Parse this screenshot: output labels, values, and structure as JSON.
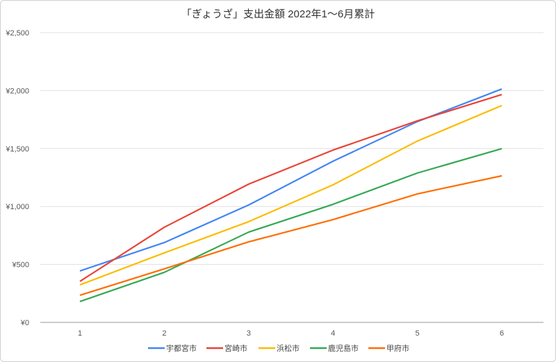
{
  "chart_data": {
    "type": "line",
    "title": "「ぎょうざ」支出金額 2022年1〜6月累計",
    "xlabel": "",
    "ylabel": "",
    "x": [
      "1",
      "2",
      "3",
      "4",
      "5",
      "6"
    ],
    "ylim": [
      0,
      2500
    ],
    "yticks": [
      0,
      500,
      1000,
      1500,
      2000,
      2500
    ],
    "ytick_labels": [
      "¥0",
      "¥500",
      "¥1,000",
      "¥1,500",
      "¥2,000",
      "¥2,500"
    ],
    "grid": true,
    "legend_position": "bottom",
    "series": [
      {
        "name": "宇都宮市",
        "color": "#4285f4",
        "values": [
          444,
          689,
          1013,
          1391,
          1733,
          2014
        ]
      },
      {
        "name": "宮崎市",
        "color": "#ea4335",
        "values": [
          354,
          821,
          1193,
          1487,
          1739,
          1966
        ]
      },
      {
        "name": "浜松市",
        "color": "#fbbc04",
        "values": [
          324,
          600,
          869,
          1187,
          1565,
          1871
        ]
      },
      {
        "name": "鹿児島市",
        "color": "#34a853",
        "values": [
          180,
          432,
          779,
          1019,
          1289,
          1499
        ]
      },
      {
        "name": "甲府市",
        "color": "#ff6d01",
        "values": [
          234,
          462,
          695,
          887,
          1109,
          1265
        ]
      }
    ]
  }
}
